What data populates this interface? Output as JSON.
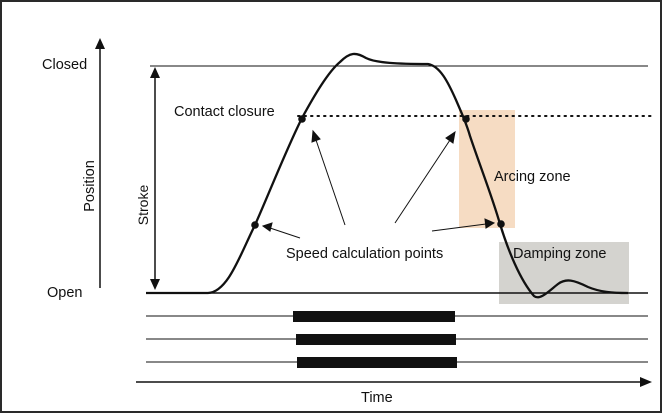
{
  "labels": {
    "closed": "Closed",
    "open": "Open",
    "position": "Position",
    "stroke": "Stroke",
    "contact_closure": "Contact closure",
    "arcing_zone": "Arcing zone",
    "damping_zone": "Damping zone",
    "speed_points": "Speed calculation points",
    "time": "Time"
  },
  "colors": {
    "line": "#111111",
    "arcing_zone_fill": "#f6dcc3",
    "damping_zone_fill": "#d4d3cf",
    "frame": "#2a2a2a",
    "background": "#ffffff"
  },
  "timing_bars_count": 3,
  "speed_points_count": 4
}
